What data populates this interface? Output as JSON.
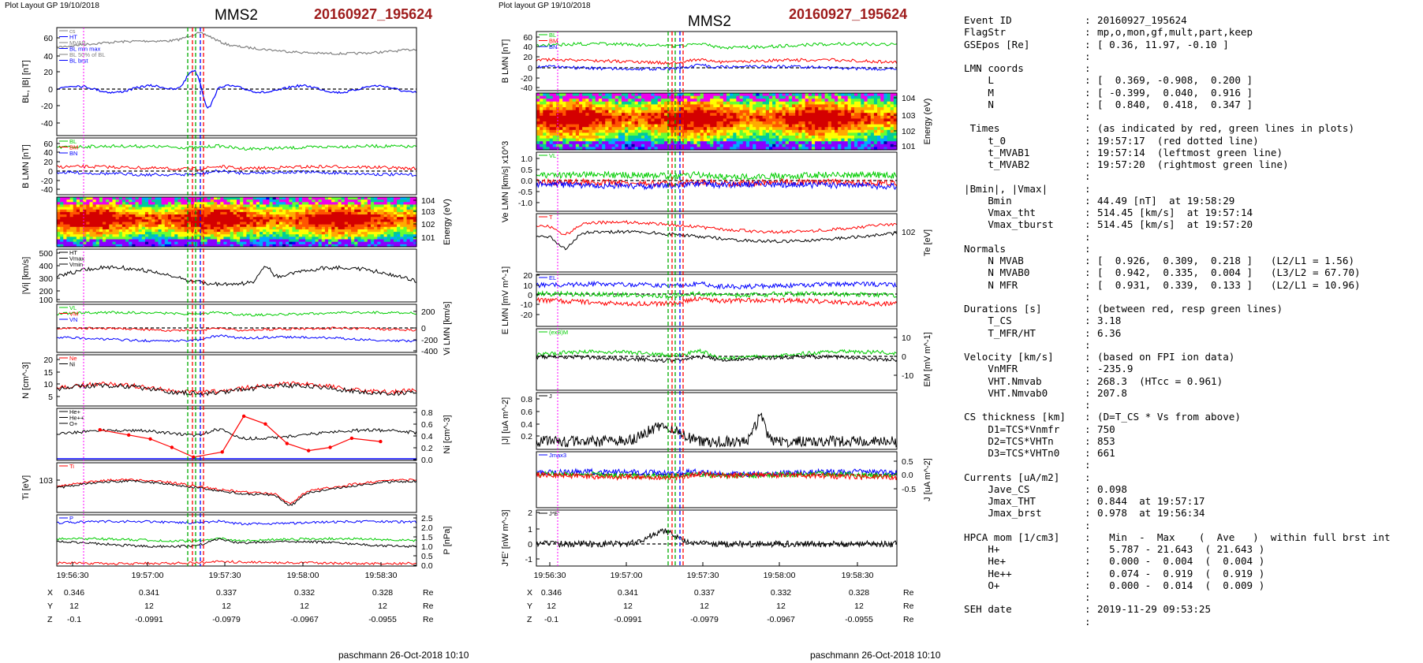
{
  "left_figure": {
    "layout_label": "Plot Layout GP 19/10/2018",
    "spacecraft": "MMS2",
    "event": "20160927_195624",
    "footer": "paschmann 26-Oct-2018 10:10"
  },
  "right_figure": {
    "layout_label": "Plot layout GP 19/10/2018",
    "spacecraft": "MMS2",
    "event": "20160927_195624",
    "footer": "paschmann 26-Oct-2018 10:10"
  },
  "chart_data": [
    {
      "type": "line",
      "figure": "left",
      "time_ticks": [
        "19:56:30",
        "19:57:00",
        "19:57:30",
        "19:58:00",
        "19:58:30"
      ],
      "position_table": {
        "rows": [
          {
            "label": "X",
            "values": [
              "0.346",
              "0.341",
              "0.337",
              "0.332",
              "0.328"
            ],
            "unit": "Re"
          },
          {
            "label": "Y",
            "values": [
              "12",
              "12",
              "12",
              "12",
              "12"
            ],
            "unit": "Re"
          },
          {
            "label": "Z",
            "values": [
              "-0.1",
              "-0.0991",
              "-0.0979",
              "-0.0967",
              "-0.0955"
            ],
            "unit": "Re"
          }
        ]
      },
      "panels": [
        {
          "ylabel": "BL, |B| [nT]",
          "ylim": [
            -50,
            70
          ],
          "ticks": [
            "60",
            "40",
            "20",
            "0",
            "-20",
            "-40"
          ],
          "legend": [
            "cs",
            "HT",
            "MVAB",
            "BL min max",
            "BL 50% of BL",
            "BL brst"
          ],
          "series_colors": [
            "#808080",
            "#0000ff"
          ]
        },
        {
          "ylabel": "B LMN [nT]",
          "ylim": [
            -50,
            70
          ],
          "ticks": [
            "60",
            "40",
            "20",
            "0",
            "-20",
            "-40"
          ],
          "legend": [
            "BL",
            "BM",
            "BN"
          ],
          "series_colors": [
            "#00cc00",
            "#ff0000",
            "#0000ff"
          ]
        },
        {
          "ylabel": "Energy (eV)",
          "type": "spectrogram",
          "ticks": [
            "10^4",
            "10^3",
            "10^2",
            "10^1"
          ],
          "scale": "log"
        },
        {
          "ylabel": "|Vi| [km/s]",
          "ylim": [
            0,
            500
          ],
          "ticks": [
            "500",
            "400",
            "300",
            "200",
            "100"
          ],
          "legend": [
            "HT",
            "Vmax",
            "Vmin"
          ],
          "series_colors": [
            "#000000"
          ]
        },
        {
          "ylabel": "Vi LMN [km/s]",
          "ylim": [
            -500,
            300
          ],
          "ticks": [
            "200",
            "0",
            "-200",
            "-400"
          ],
          "legend": [
            "VL",
            "VM",
            "VN"
          ],
          "series_colors": [
            "#00cc00",
            "#ff0000",
            "#0000ff"
          ]
        },
        {
          "ylabel": "N [cm^-3]",
          "ylim": [
            0,
            20
          ],
          "ticks": [
            "20",
            "15",
            "10",
            "5"
          ],
          "legend": [
            "Ne",
            "Ni"
          ],
          "series_colors": [
            "#ff0000",
            "#000000"
          ]
        },
        {
          "ylabel": "Ni [cm^-3]",
          "ylim": [
            0,
            0.8
          ],
          "ticks": [
            "0.8",
            "0.6",
            "0.4",
            "0.2",
            "0.0"
          ],
          "legend": [
            "He+",
            "He++",
            "O+"
          ],
          "he_pp": {
            "x": [
              0.6,
              1.0,
              1.3,
              1.6,
              1.9,
              2.3,
              2.6,
              2.9,
              3.2,
              3.5,
              3.8,
              4.1,
              4.5
            ],
            "y": [
              0.47,
              0.39,
              0.33,
              0.2,
              0.05,
              0.13,
              0.68,
              0.56,
              0.26,
              0.15,
              0.2,
              0.34,
              0.29
            ]
          }
        },
        {
          "ylabel": "Ti [eV]",
          "ticks": [
            "10^3"
          ],
          "scale": "log",
          "legend": [
            "Ti"
          ],
          "series_colors": [
            "#ff0000",
            "#000000"
          ]
        },
        {
          "ylabel": "P [nPa]",
          "ylim": [
            0,
            2.5
          ],
          "ticks": [
            "2.5",
            "2.0",
            "1.5",
            "1.0",
            "0.5",
            "0.0"
          ],
          "legend": [
            "P"
          ],
          "series_colors": [
            "#0000ff",
            "#00cc00",
            "#000000",
            "#ff0000"
          ]
        }
      ]
    },
    {
      "type": "line",
      "figure": "right",
      "time_ticks": [
        "19:56:30",
        "19:57:00",
        "19:57:30",
        "19:58:00",
        "19:58:30"
      ],
      "position_table": {
        "rows": [
          {
            "label": "X",
            "values": [
              "0.346",
              "0.341",
              "0.337",
              "0.332",
              "0.328"
            ],
            "unit": "Re"
          },
          {
            "label": "Y",
            "values": [
              "12",
              "12",
              "12",
              "12",
              "12"
            ],
            "unit": "Re"
          },
          {
            "label": "Z",
            "values": [
              "-0.1",
              "-0.0991",
              "-0.0979",
              "-0.0967",
              "-0.0955"
            ],
            "unit": "Re"
          }
        ]
      },
      "panels": [
        {
          "ylabel": "B LMN [nT]",
          "ylim": [
            -50,
            70
          ],
          "ticks": [
            "60",
            "40",
            "20",
            "0",
            "-20",
            "-40"
          ],
          "legend": [
            "BL",
            "BM",
            "BN"
          ],
          "series_colors": [
            "#00cc00",
            "#ff0000",
            "#0000ff"
          ]
        },
        {
          "ylabel": "Energy (eV)",
          "type": "spectrogram",
          "ticks": [
            "10^4",
            "10^3",
            "10^2",
            "10^1"
          ],
          "scale": "log"
        },
        {
          "ylabel": "Ve LMN [km/s] x10^3",
          "ylim": [
            -1.3,
            1.3
          ],
          "ticks": [
            "1.0",
            "0.5",
            "0.0",
            "-0.5",
            "-1.0"
          ],
          "legend": [
            "VL"
          ],
          "series_colors": [
            "#00cc00",
            "#ff0000",
            "#0000ff"
          ]
        },
        {
          "ylabel": "Te [eV]",
          "ticks": [
            "10^2"
          ],
          "scale": "log",
          "legend": [
            "T"
          ],
          "series_colors": [
            "#ff0000",
            "#000000"
          ]
        },
        {
          "ylabel": "E LMN [mV m^-1]",
          "ylim": [
            -30,
            30
          ],
          "ticks": [
            "20",
            "10",
            "0",
            "-10",
            "-20"
          ],
          "legend": [
            "EL"
          ],
          "series_colors": [
            "#0000ff",
            "#00cc00",
            "#ff0000"
          ]
        },
        {
          "ylabel": "EM [mV m^-1]",
          "ylim": [
            -15,
            15
          ],
          "ticks": [
            "10",
            "0",
            "-10"
          ],
          "legend": [
            "(exB)M"
          ],
          "series_colors": [
            "#00cc00",
            "#000000"
          ]
        },
        {
          "ylabel": "|J| [uA m^-2]",
          "ylim": [
            0,
            0.9
          ],
          "ticks": [
            "0.8",
            "0.6",
            "0.4",
            "0.2"
          ],
          "legend": [
            "J"
          ],
          "series_colors": [
            "#000000"
          ]
        },
        {
          "ylabel": "J [uA m^-2]",
          "ylim": [
            -0.7,
            0.7
          ],
          "ticks": [
            "0.5",
            "0.0",
            "-0.5"
          ],
          "legend": [
            "Jmax3"
          ],
          "series_colors": [
            "#0000ff",
            "#00cc00",
            "#ff0000"
          ]
        },
        {
          "ylabel": "J*E' [nW m^-3]",
          "ylim": [
            -1.5,
            2.3
          ],
          "ticks": [
            "2",
            "1",
            "0",
            "-1"
          ],
          "legend": [
            "J*E'"
          ],
          "series_colors": [
            "#000000"
          ]
        }
      ]
    }
  ],
  "info": {
    "rows": [
      {
        "label": "Event ID",
        "value": "20160927_195624"
      },
      {
        "label": "FlagStr",
        "value": "mp,o,mon,gf,mult,part,keep"
      },
      {
        "label": "GSEpos [Re]",
        "value": "[ 0.36, 11.97, -0.10 ]"
      },
      {
        "label": "",
        "value": ""
      },
      {
        "label": "LMN coords",
        "value": ""
      },
      {
        "label": "    L",
        "value": "[  0.369, -0.908,  0.200 ]"
      },
      {
        "label": "    M",
        "value": "[ -0.399,  0.040,  0.916 ]"
      },
      {
        "label": "    N",
        "value": "[  0.840,  0.418,  0.347 ]"
      },
      {
        "label": "",
        "value": ""
      },
      {
        "label": " Times",
        "value": "(as indicated by red, green lines in plots)"
      },
      {
        "label": "    t_0",
        "value": "19:57:17  (red dotted line)"
      },
      {
        "label": "    t_MVAB1",
        "value": "19:57:14  (leftmost green line)"
      },
      {
        "label": "    t_MVAB2",
        "value": "19:57:20  (rightmost green line)"
      },
      {
        "label": "",
        "value": ""
      },
      {
        "label": "|Bmin|, |Vmax|",
        "value": ""
      },
      {
        "label": "    Bmin",
        "value": "44.49 [nT]  at 19:58:29"
      },
      {
        "label": "    Vmax_tht",
        "value": "514.45 [km/s]  at 19:57:14"
      },
      {
        "label": "    Vmax_tburst",
        "value": "514.45 [km/s]  at 19:57:20"
      },
      {
        "label": "",
        "value": ""
      },
      {
        "label": "Normals",
        "value": ""
      },
      {
        "label": "    N MVAB",
        "value": "[  0.926,  0.309,  0.218 ]   (L2/L1 = 1.56)"
      },
      {
        "label": "    N MVAB0",
        "value": "[  0.942,  0.335,  0.004 ]   (L3/L2 = 67.70)"
      },
      {
        "label": "    N MFR",
        "value": "[  0.931,  0.339,  0.133 ]   (L2/L1 = 10.96)"
      },
      {
        "label": "",
        "value": ""
      },
      {
        "label": "Durations [s]",
        "value": "(between red, resp green lines)"
      },
      {
        "label": "    T_CS",
        "value": "3.18"
      },
      {
        "label": "    T_MFR/HT",
        "value": "6.36"
      },
      {
        "label": "",
        "value": ""
      },
      {
        "label": "Velocity [km/s]",
        "value": "(based on FPI ion data)"
      },
      {
        "label": "    VnMFR",
        "value": "-235.9"
      },
      {
        "label": "    VHT.Nmvab",
        "value": "268.3  (HTcc = 0.961)"
      },
      {
        "label": "    VHT.Nmvab0",
        "value": "207.8"
      },
      {
        "label": "",
        "value": ""
      },
      {
        "label": "CS thickness [km]",
        "value": "(D=T_CS * Vs from above)"
      },
      {
        "label": "    D1=TCS*Vnmfr",
        "value": "750"
      },
      {
        "label": "    D2=TCS*VHTn",
        "value": "853"
      },
      {
        "label": "    D3=TCS*VHTn0",
        "value": "661"
      },
      {
        "label": "",
        "value": ""
      },
      {
        "label": "Currents [uA/m2]",
        "value": ""
      },
      {
        "label": "    Jave_CS",
        "value": "0.098"
      },
      {
        "label": "    Jmax_THT",
        "value": "0.844  at 19:57:17"
      },
      {
        "label": "    Jmax_brst",
        "value": "0.978  at 19:56:34"
      },
      {
        "label": "",
        "value": ""
      },
      {
        "label": "HPCA mom [1/cm3]",
        "value": "  Min  -  Max    (  Ave   )  within full brst int"
      },
      {
        "label": "    H+",
        "value": "  5.787 - 21.643  ( 21.643 )"
      },
      {
        "label": "    He+",
        "value": "  0.000 -  0.004  (  0.004 )"
      },
      {
        "label": "    He++",
        "value": "  0.074 -  0.919  (  0.919 )"
      },
      {
        "label": "    O+",
        "value": "  0.000 -  0.014  (  0.009 )"
      },
      {
        "label": "",
        "value": ""
      },
      {
        "label": "SEH date",
        "value": "2019-11-29 09:53:25"
      },
      {
        "label": "",
        "value": ""
      }
    ]
  },
  "colors": {
    "event_title": "#9e1b1b",
    "red": "#ff0000",
    "green": "#00cc00",
    "blue": "#0000ff",
    "black": "#000000",
    "gray": "#808080",
    "magenta": "#ff00ff"
  }
}
